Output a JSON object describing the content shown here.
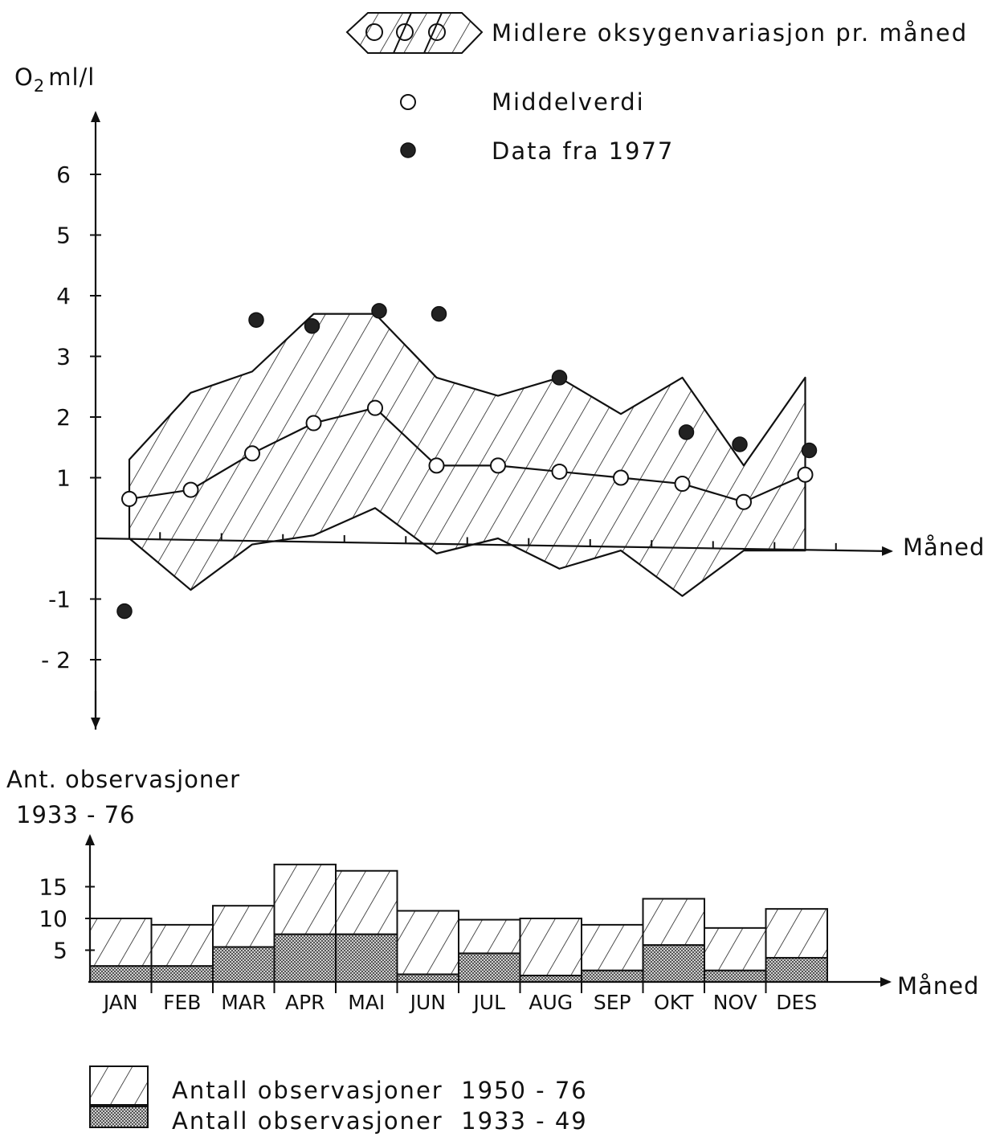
{
  "chart_data": [
    {
      "type": "area",
      "ylabel_main": "O",
      "ylabel_sub": "2",
      "ylabel_unit": "ml/l",
      "xlabel": "Måned",
      "ylim": [
        -2.8,
        6.9
      ],
      "yticks": [
        "6",
        "5",
        "4",
        "3",
        "2",
        "1",
        "-1",
        "- 2"
      ],
      "ytick_values": [
        6,
        5,
        4,
        3,
        2,
        1,
        -1,
        -2
      ],
      "x": [
        "JAN",
        "FEB",
        "MAR",
        "APR",
        "MAI",
        "JUN",
        "JUL",
        "AUG",
        "SEP",
        "OKT",
        "NOV",
        "DES"
      ],
      "series": [
        {
          "name": "Midlere oksygenvariasjon pr. måned",
          "role": "band",
          "upper": [
            1.3,
            2.4,
            2.75,
            3.7,
            3.7,
            2.65,
            2.35,
            2.65,
            2.05,
            2.65,
            1.2,
            2.65
          ],
          "lower": [
            0.0,
            -0.85,
            -0.1,
            0.05,
            0.5,
            -0.25,
            0.0,
            -0.5,
            -0.2,
            -0.95,
            -0.2,
            -0.2
          ]
        },
        {
          "name": "Middelverdi",
          "role": "mean",
          "values": [
            0.65,
            0.8,
            1.4,
            1.9,
            2.15,
            1.2,
            1.2,
            1.1,
            1.0,
            0.9,
            0.6,
            1.05
          ]
        },
        {
          "name": "Data fra 1977",
          "role": "points",
          "values": [
            -1.2,
            null,
            3.6,
            3.5,
            3.75,
            3.7,
            null,
            2.65,
            null,
            1.75,
            1.55,
            1.45
          ]
        }
      ],
      "legend": [
        {
          "symbol": "band",
          "label": "Midlere oksygenvariasjon pr. måned"
        },
        {
          "symbol": "open-circle",
          "label": "Middelverdi"
        },
        {
          "symbol": "filled-circle",
          "label": "Data fra 1977"
        }
      ],
      "legend_position": "top-right"
    },
    {
      "type": "bar",
      "ylabel_line1": "Ant. observasjoner",
      "ylabel_line2": "1933 - 76",
      "xlabel": "Måned",
      "ylim": [
        0,
        19
      ],
      "yticks": [
        "15",
        "10",
        "5"
      ],
      "ytick_values": [
        15,
        10,
        5
      ],
      "categories": [
        "JAN",
        "FEB",
        "MAR",
        "APR",
        "MAI",
        "JUN",
        "JUL",
        "AUG",
        "SEP",
        "OKT",
        "NOV",
        "DES"
      ],
      "series": [
        {
          "name": "Antall observasjoner  1933 - 49",
          "values": [
            2.5,
            2.5,
            5.5,
            7.5,
            7.5,
            1.2,
            4.5,
            1.0,
            1.8,
            5.8,
            1.8,
            3.8
          ]
        },
        {
          "name": "Antall observasjoner  1950 - 76",
          "values": [
            7.5,
            6.5,
            6.5,
            11.0,
            10.0,
            10.0,
            5.3,
            9.0,
            7.2,
            7.3,
            6.7,
            7.7
          ]
        }
      ],
      "stacked": true,
      "legend": [
        {
          "symbol": "hatched",
          "label": "Antall observasjoner  1950 - 76"
        },
        {
          "symbol": "stippled",
          "label": "Antall observasjoner  1933 - 49"
        }
      ],
      "legend_position": "bottom"
    }
  ]
}
